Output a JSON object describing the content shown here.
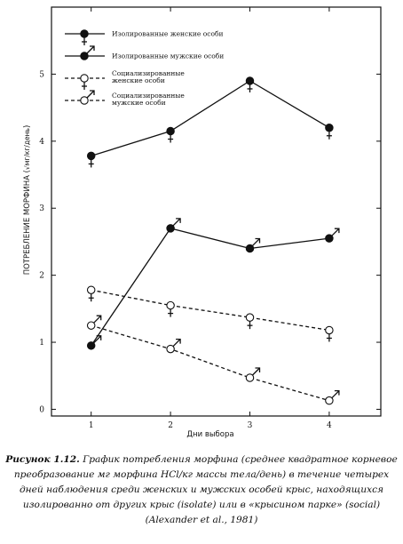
{
  "chart_data": {
    "type": "line",
    "xlabel": "Дни выбора",
    "ylabel_main": "ПОТРЕБЛЕНИЕ МОРФИНА (",
    "ylabel_unit": "√мг/кг/день",
    "ylabel_close": ")",
    "x_ticks": [
      "1",
      "2",
      "3",
      "4"
    ],
    "y_ticks": [
      "0",
      "1",
      "2",
      "3",
      "4",
      "5"
    ],
    "xlim": [
      0.5,
      4.65
    ],
    "ylim": [
      -0.1,
      6.0
    ],
    "grid": false,
    "legend_position": "top-left",
    "x": [
      1,
      2,
      3,
      4
    ],
    "series": [
      {
        "name": "Изолированные женские особи",
        "values": [
          3.78,
          4.15,
          4.9,
          4.2
        ],
        "dash": "solid",
        "marker": "filled",
        "symbol": "female"
      },
      {
        "name": "Изолированные мужские особи",
        "values": [
          0.95,
          2.7,
          2.4,
          2.55
        ],
        "dash": "solid",
        "marker": "filled",
        "symbol": "male"
      },
      {
        "name": "Социализированные женские особи",
        "name_lines": [
          "Социализированные",
          "женские особи"
        ],
        "values": [
          1.78,
          1.55,
          1.37,
          1.18
        ],
        "dash": "dashed",
        "marker": "open",
        "symbol": "female"
      },
      {
        "name": "Социализированные мужские особи",
        "name_lines": [
          "Социализированные",
          "мужские особи"
        ],
        "values": [
          1.25,
          0.9,
          0.47,
          0.13
        ],
        "dash": "dashed",
        "marker": "open",
        "symbol": "male"
      }
    ]
  },
  "caption": {
    "label": "Рисунок 1.12.",
    "text": " График потребления морфина (среднее квадратное корневое преобразование мг морфина HCl/кг массы тела/день) в течение четырех дней наблюдения среди женских и мужских особей крыс, находящихся изолированно от других крыс (isolate) или в «крысином парке» (social) (Alexander et al., 1981)"
  }
}
